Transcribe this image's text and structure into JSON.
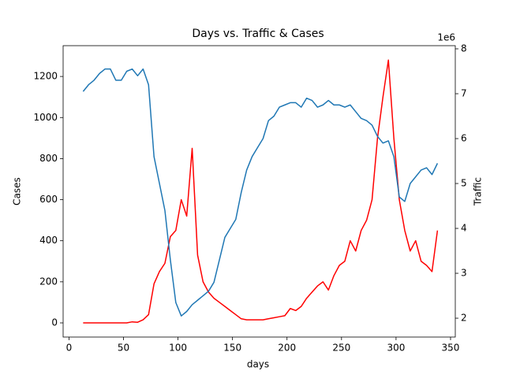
{
  "chart_data": {
    "type": "line",
    "title": "Days vs. Traffic & Cases",
    "x_label": "days",
    "y_label": "Cases",
    "y2_label": "Traffic",
    "y2_offset_label": "1e6",
    "x": [
      13,
      18,
      23,
      28,
      33,
      38,
      43,
      48,
      53,
      58,
      63,
      68,
      73,
      78,
      83,
      88,
      93,
      98,
      103,
      108,
      113,
      118,
      123,
      128,
      133,
      138,
      143,
      148,
      153,
      158,
      163,
      168,
      173,
      178,
      183,
      188,
      193,
      198,
      203,
      208,
      213,
      218,
      223,
      228,
      233,
      238,
      243,
      248,
      253,
      258,
      263,
      268,
      273,
      278,
      283,
      288,
      293,
      298,
      303,
      308,
      313,
      318,
      323,
      328,
      333,
      338
    ],
    "series": [
      {
        "name": "Cases",
        "color": "#ff0000",
        "values": [
          0,
          0,
          0,
          0,
          0,
          0,
          0,
          0,
          0,
          5,
          3,
          15,
          40,
          190,
          250,
          290,
          420,
          450,
          600,
          520,
          850,
          330,
          200,
          150,
          120,
          100,
          80,
          60,
          40,
          20,
          15,
          15,
          15,
          15,
          20,
          25,
          30,
          35,
          70,
          60,
          80,
          120,
          150,
          180,
          200,
          160,
          230,
          280,
          300,
          400,
          350,
          450,
          500,
          600,
          900,
          1100,
          1280,
          900,
          600,
          450,
          350,
          400,
          300,
          280,
          250,
          450
        ]
      },
      {
        "name": "Traffic",
        "color": "#1f77b4",
        "axis": "y2",
        "values": [
          7.05,
          7.2,
          7.3,
          7.45,
          7.55,
          7.55,
          7.3,
          7.3,
          7.5,
          7.55,
          7.4,
          7.55,
          7.2,
          5.6,
          5.0,
          4.4,
          3.3,
          2.35,
          2.05,
          2.15,
          2.3,
          2.4,
          2.5,
          2.6,
          2.8,
          3.3,
          3.8,
          4.0,
          4.2,
          4.8,
          5.3,
          5.6,
          5.8,
          6.0,
          6.4,
          6.5,
          6.7,
          6.75,
          6.8,
          6.8,
          6.7,
          6.9,
          6.85,
          6.7,
          6.75,
          6.85,
          6.75,
          6.75,
          6.7,
          6.75,
          6.6,
          6.45,
          6.4,
          6.3,
          6.05,
          5.9,
          5.95,
          5.6,
          4.7,
          4.6,
          5.0,
          5.15,
          5.3,
          5.35,
          5.2,
          5.45
        ]
      }
    ],
    "xlim": [
      -5.35,
      354.35
    ],
    "xticks": [
      0,
      50,
      100,
      150,
      200,
      250,
      300,
      350
    ],
    "ylim": [
      -69,
      1350
    ],
    "yticks": [
      0,
      200,
      400,
      600,
      800,
      1000,
      1200
    ],
    "y2lim": [
      1.58,
      8.07
    ],
    "y2ticks": [
      2,
      3,
      4,
      5,
      6,
      7,
      8
    ]
  }
}
